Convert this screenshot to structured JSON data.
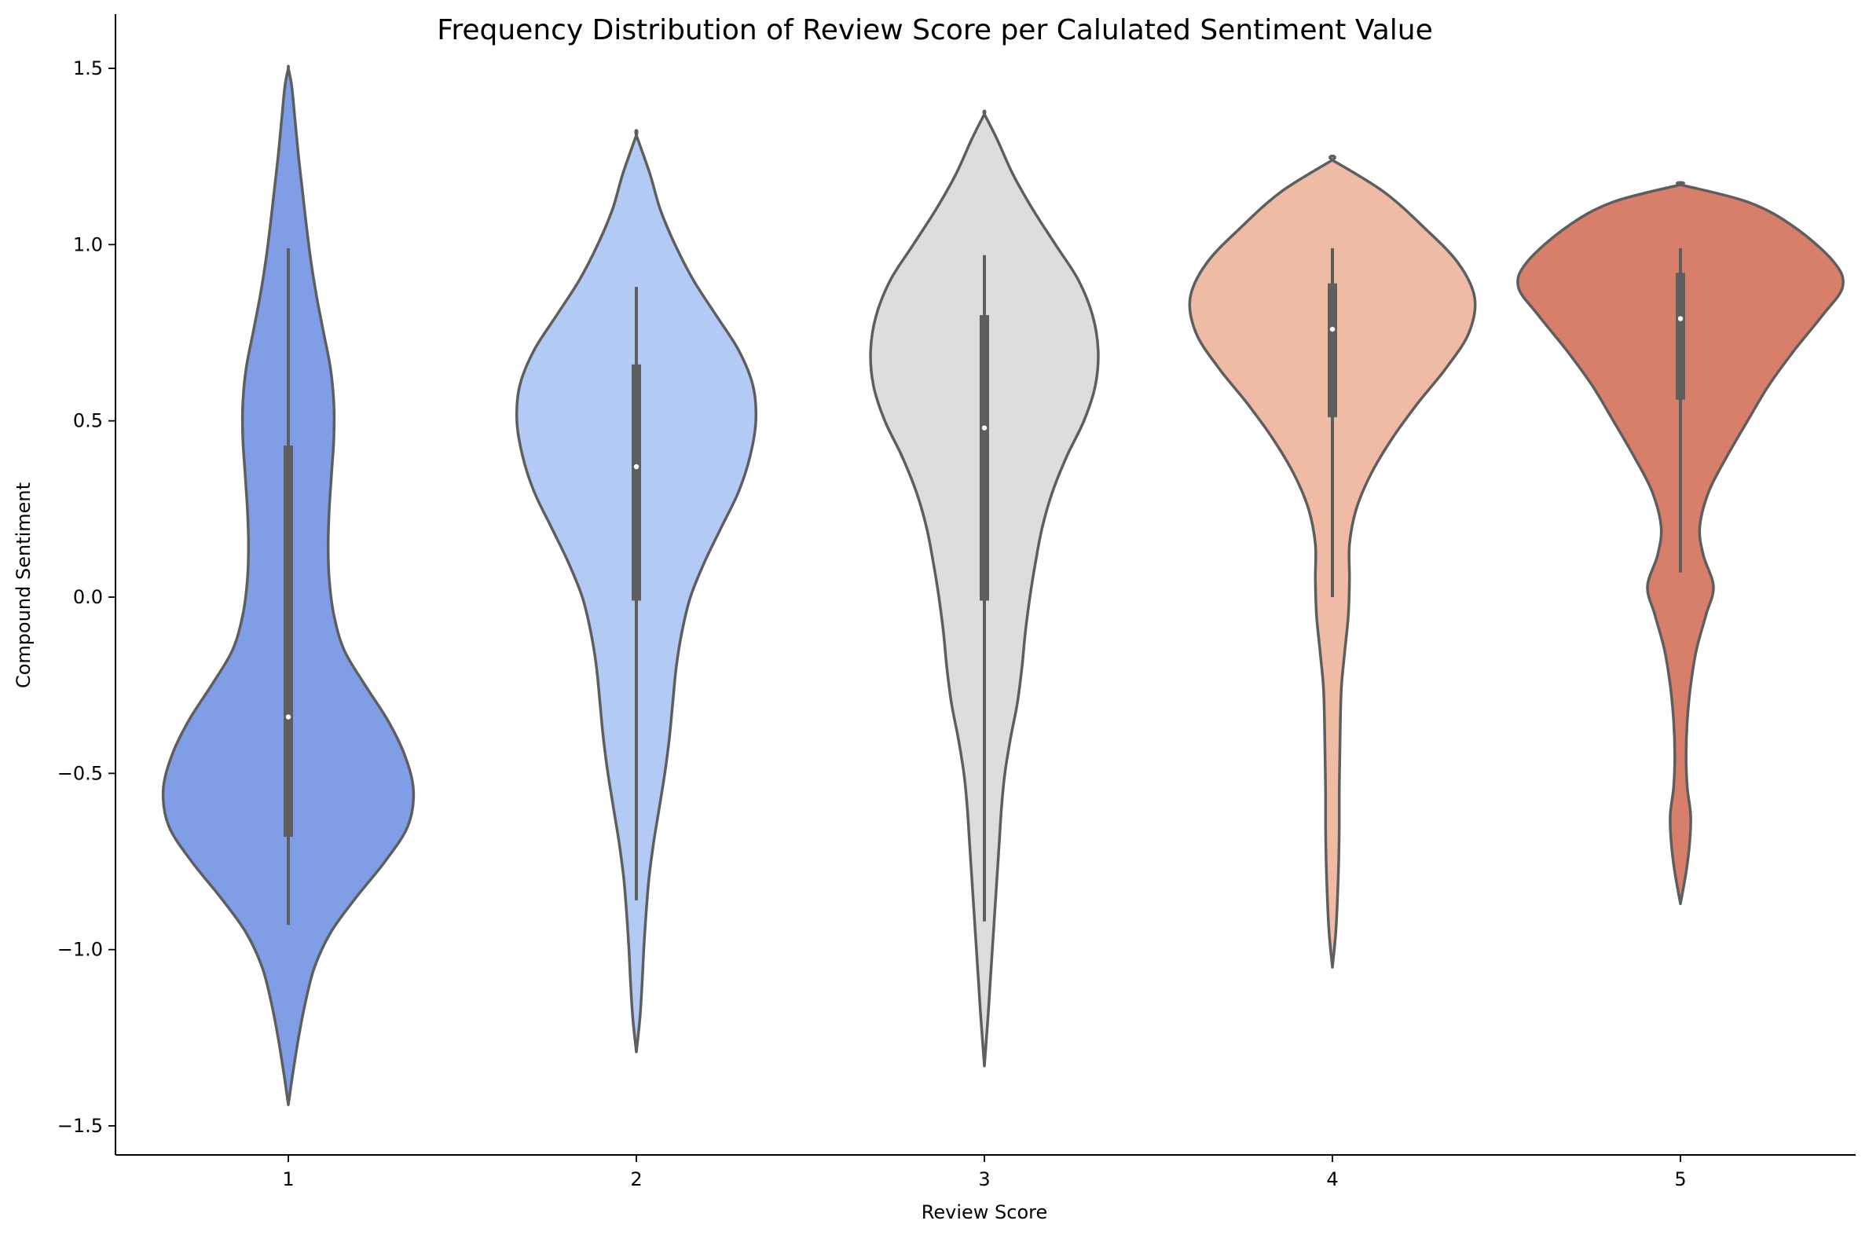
{
  "chart_data": {
    "type": "violin",
    "title": "Frequency Distribution of Review Score per Calulated Sentiment Value",
    "xlabel": "Review Score",
    "ylabel": "Compound Sentiment",
    "ylim": [
      -1.65,
      1.65
    ],
    "yticks": [
      -1.5,
      -1.0,
      -0.5,
      0.0,
      0.5,
      1.0,
      1.5
    ],
    "ytick_labels": [
      "−1.5",
      "−1.0",
      "−0.5",
      "0.0",
      "0.5",
      "1.0",
      "1.5"
    ],
    "categories": [
      "1",
      "2",
      "3",
      "4",
      "5"
    ],
    "grid": false,
    "legend": "none",
    "violins": [
      {
        "category": "1",
        "color": "#7f9ee6",
        "median": -0.34,
        "q1": -0.68,
        "q3": 0.43,
        "whisker_low": -0.93,
        "whisker_high": 0.99,
        "extent": [
          -1.44,
          1.5
        ],
        "profile": [
          [
            -1.44,
            0.0
          ],
          [
            -1.35,
            0.008
          ],
          [
            -1.25,
            0.018
          ],
          [
            -1.15,
            0.03
          ],
          [
            -1.05,
            0.046
          ],
          [
            -0.95,
            0.075
          ],
          [
            -0.85,
            0.12
          ],
          [
            -0.75,
            0.17
          ],
          [
            -0.65,
            0.21
          ],
          [
            -0.55,
            0.22
          ],
          [
            -0.45,
            0.205
          ],
          [
            -0.35,
            0.175
          ],
          [
            -0.25,
            0.135
          ],
          [
            -0.15,
            0.098
          ],
          [
            -0.05,
            0.08
          ],
          [
            0.05,
            0.072
          ],
          [
            0.15,
            0.07
          ],
          [
            0.25,
            0.072
          ],
          [
            0.35,
            0.076
          ],
          [
            0.45,
            0.08
          ],
          [
            0.55,
            0.08
          ],
          [
            0.65,
            0.074
          ],
          [
            0.75,
            0.062
          ],
          [
            0.85,
            0.05
          ],
          [
            0.95,
            0.04
          ],
          [
            1.05,
            0.032
          ],
          [
            1.15,
            0.025
          ],
          [
            1.25,
            0.018
          ],
          [
            1.35,
            0.012
          ],
          [
            1.45,
            0.006
          ],
          [
            1.5,
            0.0
          ]
        ]
      },
      {
        "category": "2",
        "color": "#b3cbf4",
        "median": 0.37,
        "q1": -0.01,
        "q3": 0.66,
        "whisker_low": -0.86,
        "whisker_high": 0.88,
        "extent": [
          -1.29,
          1.31
        ],
        "profile": [
          [
            -1.29,
            0.0
          ],
          [
            -1.2,
            0.006
          ],
          [
            -1.1,
            0.01
          ],
          [
            -1.0,
            0.013
          ],
          [
            -0.9,
            0.017
          ],
          [
            -0.8,
            0.022
          ],
          [
            -0.7,
            0.03
          ],
          [
            -0.6,
            0.04
          ],
          [
            -0.5,
            0.05
          ],
          [
            -0.4,
            0.058
          ],
          [
            -0.3,
            0.064
          ],
          [
            -0.2,
            0.07
          ],
          [
            -0.1,
            0.08
          ],
          [
            0.0,
            0.095
          ],
          [
            0.1,
            0.12
          ],
          [
            0.2,
            0.15
          ],
          [
            0.3,
            0.18
          ],
          [
            0.4,
            0.2
          ],
          [
            0.5,
            0.21
          ],
          [
            0.6,
            0.205
          ],
          [
            0.7,
            0.18
          ],
          [
            0.8,
            0.14
          ],
          [
            0.9,
            0.1
          ],
          [
            1.0,
            0.068
          ],
          [
            1.1,
            0.042
          ],
          [
            1.2,
            0.024
          ],
          [
            1.31,
            0.0
          ]
        ]
      },
      {
        "category": "3",
        "color": "#dddddd",
        "median": 0.48,
        "q1": -0.01,
        "q3": 0.8,
        "whisker_low": -0.92,
        "whisker_high": 0.97,
        "extent": [
          -1.33,
          1.37
        ],
        "profile": [
          [
            -1.33,
            0.0
          ],
          [
            -1.2,
            0.006
          ],
          [
            -1.1,
            0.01
          ],
          [
            -1.0,
            0.014
          ],
          [
            -0.9,
            0.018
          ],
          [
            -0.8,
            0.022
          ],
          [
            -0.7,
            0.026
          ],
          [
            -0.6,
            0.03
          ],
          [
            -0.5,
            0.036
          ],
          [
            -0.4,
            0.046
          ],
          [
            -0.3,
            0.058
          ],
          [
            -0.2,
            0.066
          ],
          [
            -0.1,
            0.072
          ],
          [
            0.0,
            0.08
          ],
          [
            0.1,
            0.09
          ],
          [
            0.2,
            0.102
          ],
          [
            0.3,
            0.12
          ],
          [
            0.4,
            0.145
          ],
          [
            0.5,
            0.175
          ],
          [
            0.6,
            0.195
          ],
          [
            0.7,
            0.2
          ],
          [
            0.8,
            0.19
          ],
          [
            0.9,
            0.165
          ],
          [
            1.0,
            0.125
          ],
          [
            1.1,
            0.085
          ],
          [
            1.2,
            0.05
          ],
          [
            1.3,
            0.022
          ],
          [
            1.37,
            0.0
          ]
        ]
      },
      {
        "category": "4",
        "color": "#efbba4",
        "median": 0.76,
        "q1": 0.51,
        "q3": 0.89,
        "whisker_low": 0.0,
        "whisker_high": 0.99,
        "extent": [
          -1.05,
          1.24
        ],
        "profile": [
          [
            -1.05,
            0.0
          ],
          [
            -0.95,
            0.006
          ],
          [
            -0.85,
            0.009
          ],
          [
            -0.75,
            0.011
          ],
          [
            -0.65,
            0.012
          ],
          [
            -0.55,
            0.012
          ],
          [
            -0.45,
            0.013
          ],
          [
            -0.35,
            0.014
          ],
          [
            -0.25,
            0.016
          ],
          [
            -0.15,
            0.022
          ],
          [
            -0.05,
            0.028
          ],
          [
            0.05,
            0.03
          ],
          [
            0.15,
            0.03
          ],
          [
            0.25,
            0.042
          ],
          [
            0.35,
            0.068
          ],
          [
            0.45,
            0.105
          ],
          [
            0.55,
            0.15
          ],
          [
            0.65,
            0.2
          ],
          [
            0.75,
            0.24
          ],
          [
            0.85,
            0.25
          ],
          [
            0.95,
            0.22
          ],
          [
            1.05,
            0.16
          ],
          [
            1.15,
            0.09
          ],
          [
            1.24,
            0.0
          ]
        ]
      },
      {
        "category": "5",
        "color": "#d77f6a",
        "median": 0.79,
        "q1": 0.56,
        "q3": 0.92,
        "whisker_low": 0.07,
        "whisker_high": 0.99,
        "extent": [
          -0.87,
          1.17
        ],
        "profile": [
          [
            -0.87,
            0.0
          ],
          [
            -0.78,
            0.01
          ],
          [
            -0.7,
            0.016
          ],
          [
            -0.62,
            0.018
          ],
          [
            -0.54,
            0.012
          ],
          [
            -0.45,
            0.01
          ],
          [
            -0.35,
            0.012
          ],
          [
            -0.25,
            0.018
          ],
          [
            -0.15,
            0.028
          ],
          [
            -0.05,
            0.045
          ],
          [
            0.03,
            0.058
          ],
          [
            0.12,
            0.04
          ],
          [
            0.2,
            0.034
          ],
          [
            0.3,
            0.05
          ],
          [
            0.4,
            0.082
          ],
          [
            0.5,
            0.118
          ],
          [
            0.6,
            0.155
          ],
          [
            0.7,
            0.2
          ],
          [
            0.8,
            0.25
          ],
          [
            0.88,
            0.285
          ],
          [
            0.95,
            0.27
          ],
          [
            1.05,
            0.2
          ],
          [
            1.12,
            0.12
          ],
          [
            1.17,
            0.0
          ]
        ]
      }
    ]
  }
}
